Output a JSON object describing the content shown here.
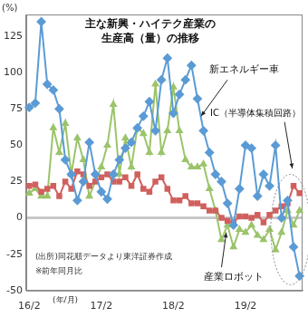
{
  "chart_data": {
    "type": "line",
    "title": [
      "主な新興・ハイテク産業の",
      "生産高（量）の推移"
    ],
    "ylabel": "(%)",
    "xlabel": "(年/月)",
    "annotations": [
      "新エネルギー車",
      "IC（半導体集積回路）",
      "産業ロボット",
      "(出所)同花順データより東洋証券作成",
      "※前年同月比"
    ],
    "categories": [
      "16/2",
      null,
      null,
      null,
      null,
      null,
      null,
      null,
      null,
      null,
      null,
      null,
      "17/2",
      null,
      null,
      null,
      null,
      null,
      null,
      null,
      null,
      null,
      null,
      null,
      "18/2",
      null,
      null,
      null,
      null,
      null,
      null,
      null,
      null,
      null,
      null,
      null,
      "19/2",
      null,
      null,
      null,
      null,
      null,
      null,
      null,
      null,
      null
    ],
    "series": [
      {
        "name": "新エネルギー車",
        "color": "#5b9bd5",
        "marker": "diamond",
        "line_style": "solid",
        "values": [
          76,
          79,
          135,
          92,
          88,
          75,
          40,
          30,
          12,
          25,
          52,
          30,
          18,
          13,
          30,
          40,
          48,
          52,
          62,
          70,
          80,
          60,
          95,
          110,
          72,
          85,
          95,
          105,
          82,
          60,
          45,
          30,
          25,
          10,
          -5,
          20,
          50,
          48,
          15,
          30,
          22,
          50,
          0,
          12,
          -20,
          -40
        ]
      },
      {
        "name": "IC（半導体集積回路）",
        "color": "#d0605e",
        "marker": "square",
        "line_style": "solid",
        "values": [
          22,
          23,
          18,
          20,
          22,
          15,
          25,
          20,
          32,
          30,
          22,
          25,
          28,
          30,
          25,
          25,
          28,
          22,
          30,
          20,
          18,
          25,
          28,
          20,
          12,
          12,
          15,
          10,
          10,
          8,
          5,
          5,
          0,
          -2,
          -3,
          1,
          1,
          0,
          2,
          -3,
          2,
          5,
          8,
          10,
          22,
          17
        ]
      },
      {
        "name": "産業ロボット",
        "color": "#9bc46a",
        "marker": "triangle",
        "line_style": "solid",
        "values": [
          17,
          20,
          15,
          15,
          62,
          45,
          65,
          30,
          55,
          40,
          15,
          25,
          35,
          50,
          78,
          30,
          55,
          35,
          62,
          58,
          45,
          92,
          45,
          60,
          90,
          60,
          40,
          35,
          35,
          37,
          20,
          5,
          -15,
          -5,
          -20,
          -8,
          -10,
          -5,
          -12,
          -15,
          -8,
          -22,
          -10,
          5,
          -5,
          5
        ]
      }
    ],
    "ylim": [
      -50,
      140
    ],
    "yticks": [
      -50,
      -25,
      0,
      25,
      50,
      75,
      100,
      125
    ],
    "grid": false,
    "legend": "none"
  }
}
